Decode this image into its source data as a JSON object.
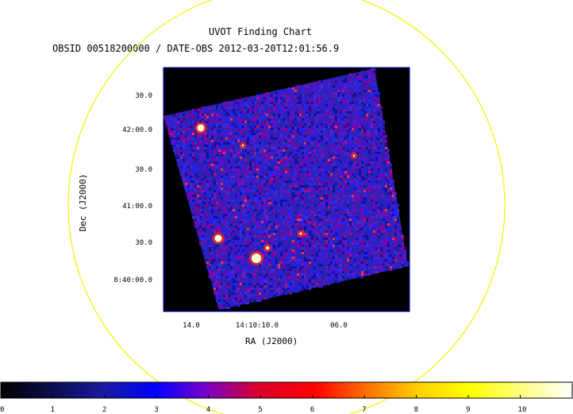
{
  "chart_data": {
    "type": "heatmap",
    "title": "UVOT Finding Chart",
    "subtitle": "OBSID 00518200000 / DATE-OBS 2012-03-20T12:01:56.9",
    "xlabel": "RA (J2000)",
    "ylabel": "Dec (J2000)",
    "x_ticks": [
      "14.0",
      "14:10:10.0",
      "06.0"
    ],
    "y_ticks": [
      "30.0",
      "42:00.0",
      "30.0",
      "41:00.0",
      "30.0",
      "8:40:00.0"
    ],
    "colorbar": {
      "min": 0,
      "max": 11,
      "ticks": [
        "0",
        "1",
        "2",
        "3",
        "4",
        "5",
        "6",
        "7",
        "8",
        "9",
        "10"
      ]
    },
    "colors": {
      "background": "#000000",
      "field_blue": "#2a22b4",
      "circle": "#f2f200",
      "frame": "#0000c8"
    }
  }
}
